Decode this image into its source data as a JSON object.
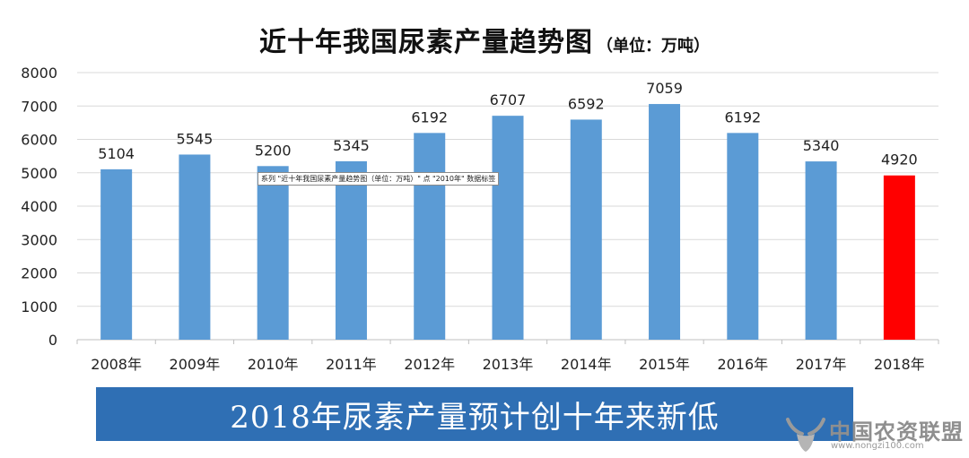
{
  "title": "近十年我国尿素产量趋势图",
  "unit_note": "（单位：万吨）",
  "tooltip": "系列 \"近十年我国尿素产量趋势图（单位：万吨）\" 点 \"2010年\" 数据标签",
  "banner": "2018年尿素产量预计创十年来新低",
  "watermark": {
    "name": "中国农资联盟",
    "url": "www.nongzi100.com"
  },
  "colors": {
    "bar": "#5b9bd5",
    "highlight": "#ff0000",
    "grid": "#d9d9d9",
    "banner": "#2f6fb4"
  },
  "chart_data": {
    "type": "bar",
    "categories": [
      "2008年",
      "2009年",
      "2010年",
      "2011年",
      "2012年",
      "2013年",
      "2014年",
      "2015年",
      "2016年",
      "2017年",
      "2018年"
    ],
    "values": [
      5104,
      5545,
      5200,
      5345,
      6192,
      6707,
      6592,
      7059,
      6192,
      5340,
      4920
    ],
    "highlight_index": 10,
    "ylim": [
      0,
      8000
    ],
    "yticks": [
      0,
      1000,
      2000,
      3000,
      4000,
      5000,
      6000,
      7000,
      8000
    ],
    "grid": true
  }
}
